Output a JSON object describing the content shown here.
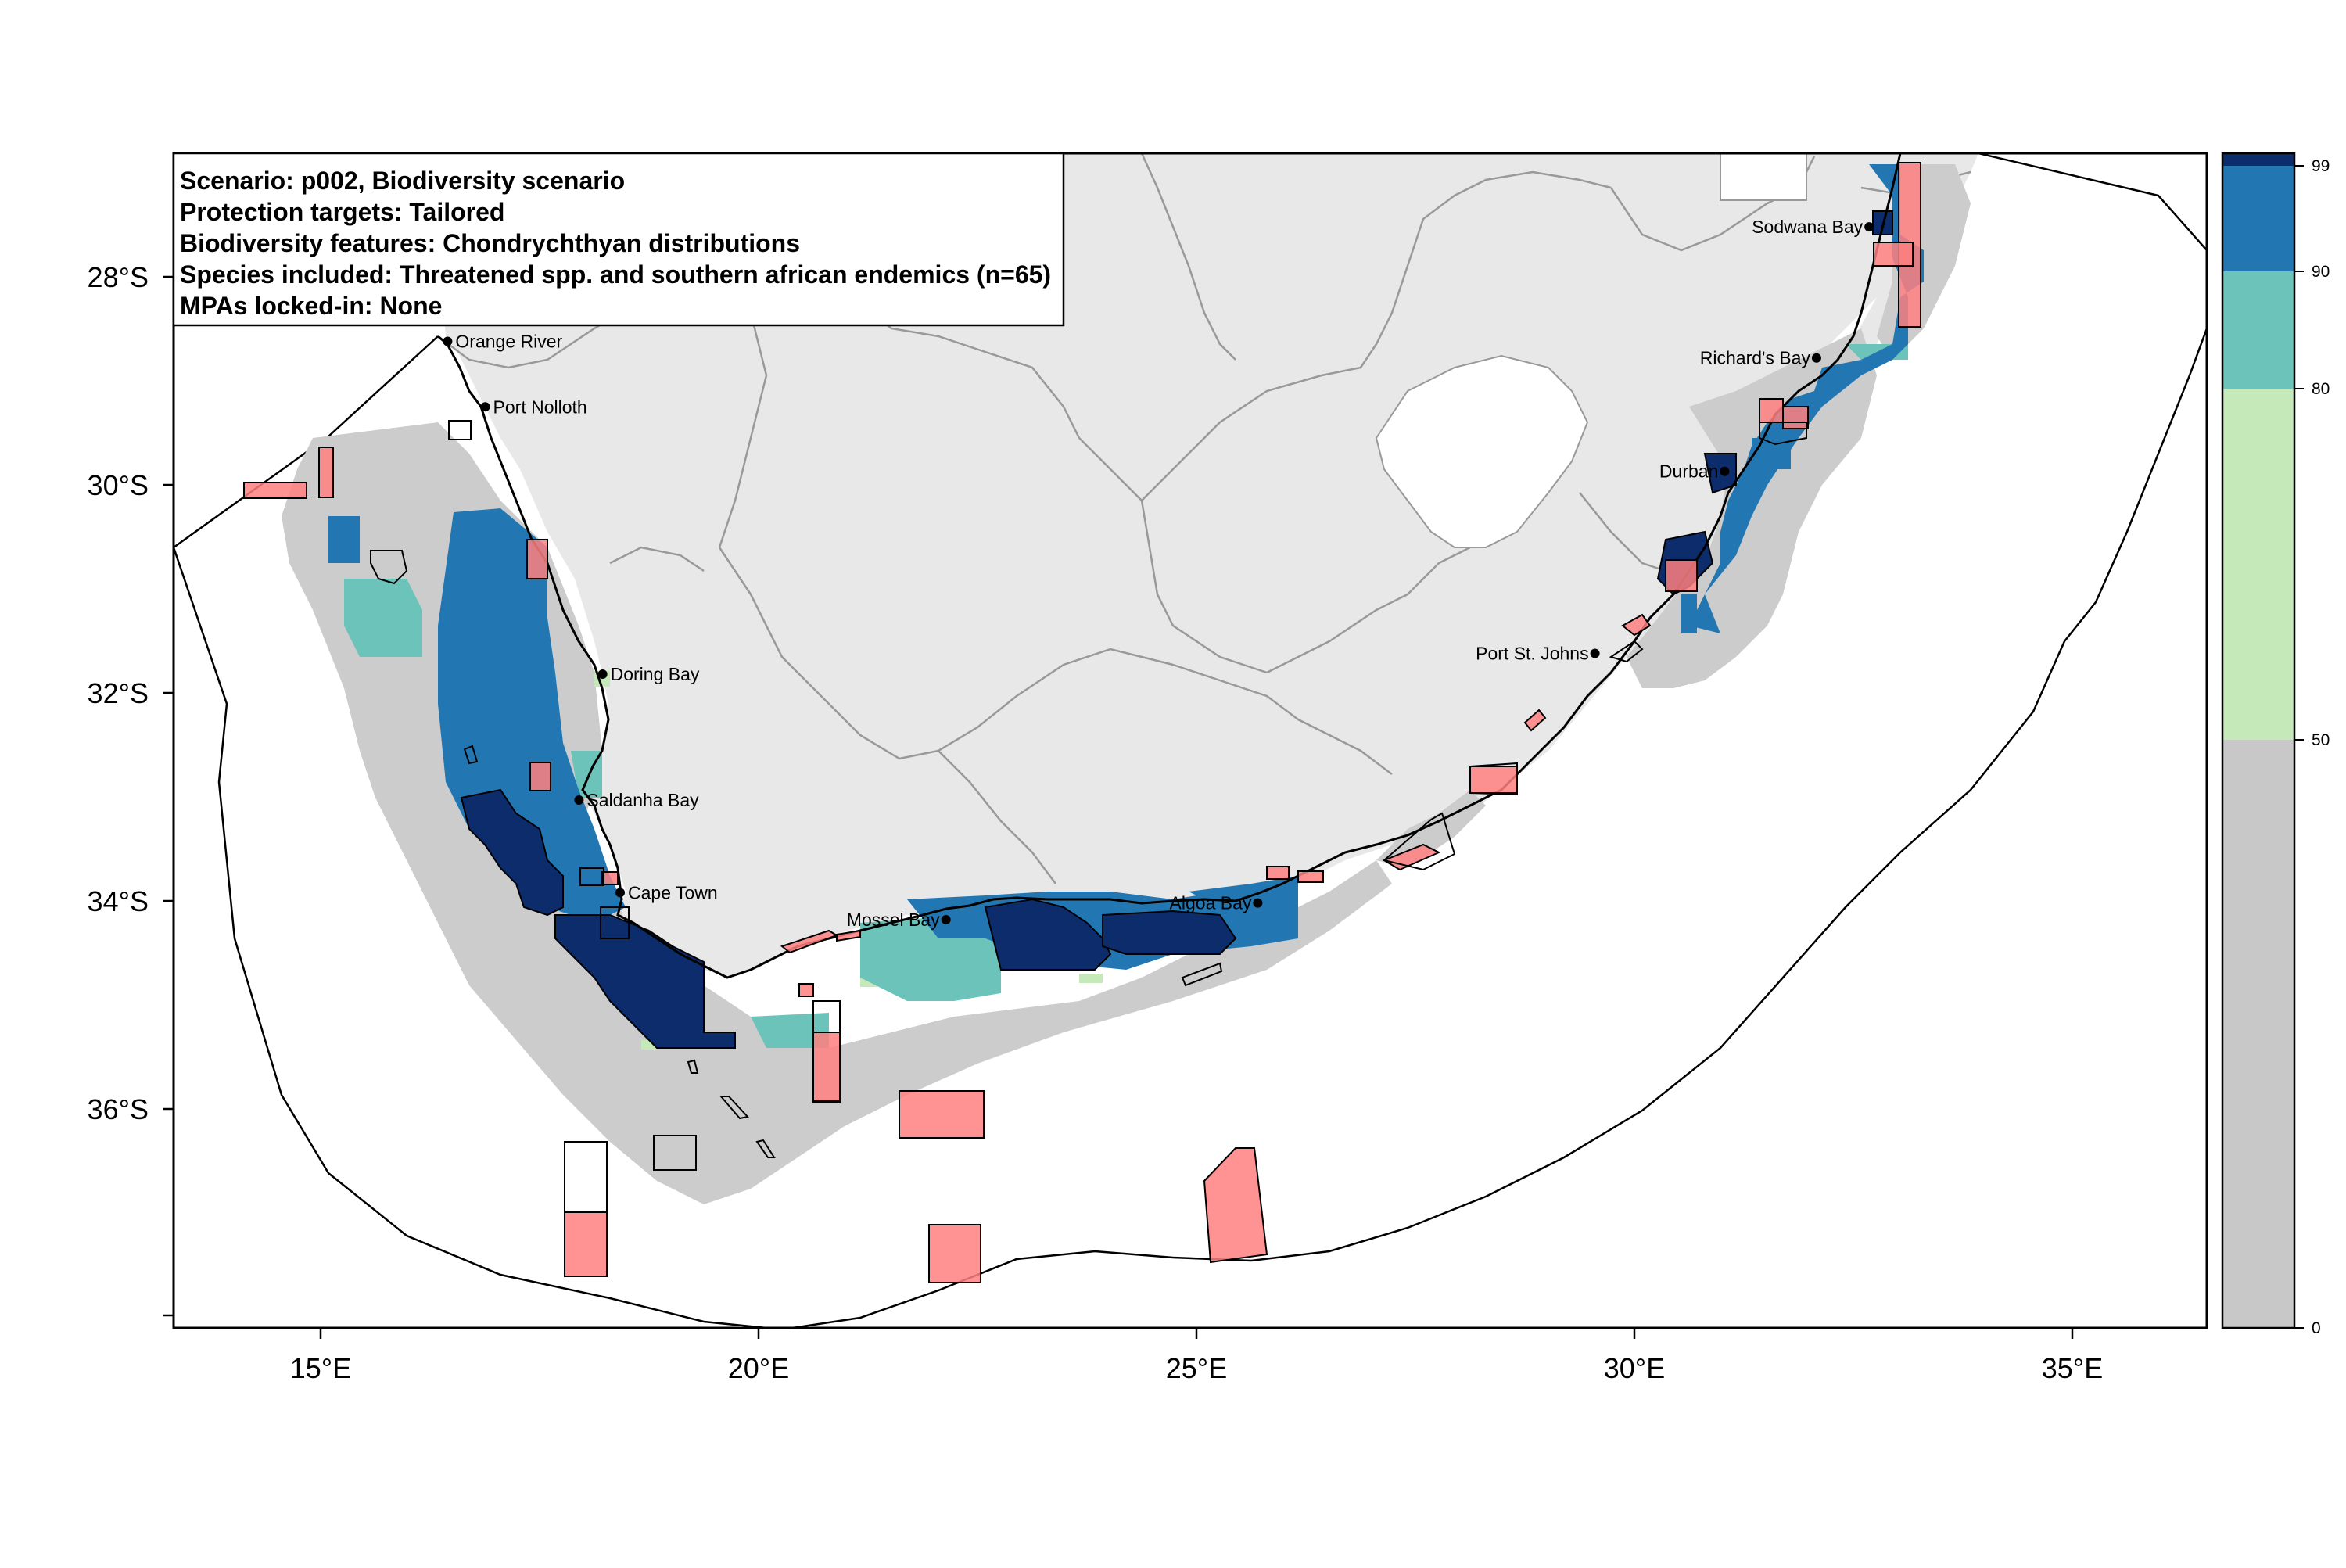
{
  "map": {
    "info_box": {
      "lines": [
        "Scenario: p002, Biodiversity scenario",
        "Protection targets: Tailored",
        "Biodiversity features: Chondrychthyan distributions",
        "Species included: Threatened spp. and southern african endemics (n=65)",
        "MPAs locked-in: None"
      ]
    },
    "x_axis": {
      "ticks": [
        "15°E",
        "20°E",
        "25°E",
        "30°E",
        "35°E"
      ]
    },
    "y_axis": {
      "ticks": [
        "28°S",
        "30°S",
        "32°S",
        "34°S",
        "36°S"
      ]
    },
    "places": [
      {
        "name": "Orange River",
        "lon": 16.45,
        "lat": -28.62,
        "align": "right"
      },
      {
        "name": "Port Nolloth",
        "lon": 16.88,
        "lat": -29.25,
        "align": "right"
      },
      {
        "name": "Doring Bay",
        "lon": 18.22,
        "lat": -31.82,
        "align": "right"
      },
      {
        "name": "Saldanha Bay",
        "lon": 17.95,
        "lat": -33.03,
        "align": "right"
      },
      {
        "name": "Cape Town",
        "lon": 18.42,
        "lat": -33.92,
        "align": "right"
      },
      {
        "name": "Mossel Bay",
        "lon": 22.14,
        "lat": -34.18,
        "align": "left"
      },
      {
        "name": "Algoa Bay",
        "lon": 25.7,
        "lat": -34.02,
        "align": "left"
      },
      {
        "name": "Port St. Johns",
        "lon": 29.55,
        "lat": -31.62,
        "align": "left"
      },
      {
        "name": "Durban",
        "lon": 31.03,
        "lat": -29.87,
        "align": "left"
      },
      {
        "name": "Richard's Bay",
        "lon": 32.08,
        "lat": -28.78,
        "align": "left"
      },
      {
        "name": "Sodwana Bay",
        "lon": 32.68,
        "lat": -27.52,
        "align": "left"
      }
    ],
    "legend": {
      "ticks": [
        "0",
        "50",
        "80",
        "90",
        "99"
      ],
      "colors": [
        "#c8c8c8",
        "#c6e9b9",
        "#6cc3b9",
        "#2277b3",
        "#0c2c6c"
      ]
    },
    "colors": {
      "land": "#e8e8e8",
      "selection_grey": "#cccccc",
      "mpa_fill": "#ff7f7f",
      "boundary": "#999999"
    }
  }
}
